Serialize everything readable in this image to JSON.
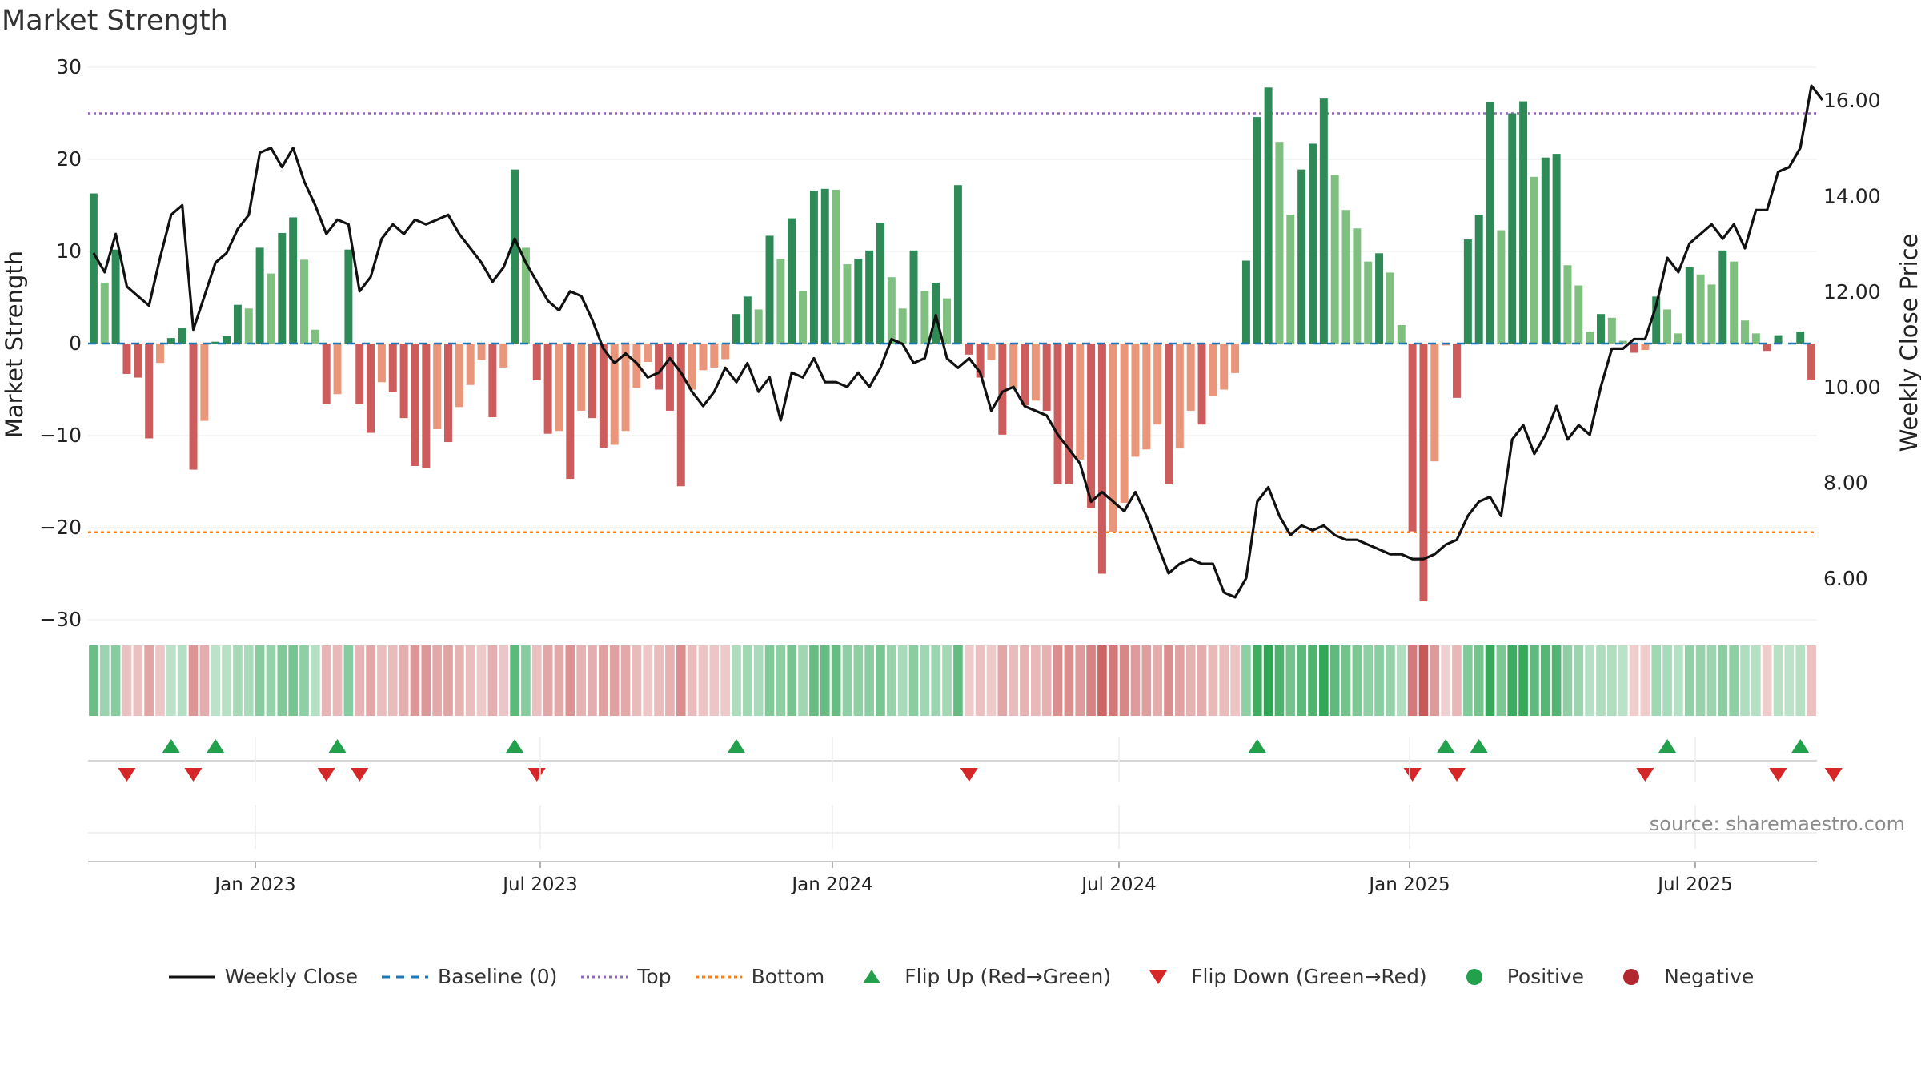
{
  "chart_data": {
    "type": "bar",
    "title": "Market Strength",
    "ylabel": "Market Strength",
    "y2label": "Weekly Close Price",
    "ylim": [
      -30,
      30
    ],
    "y2lim": [
      4.8,
      16.8
    ],
    "yticks": [
      "30",
      "20",
      "10",
      "0",
      "−10",
      "−20",
      "−30"
    ],
    "y2ticks": [
      "16.00",
      "14.00",
      "12.00",
      "10.00",
      "8.00",
      "6.00"
    ],
    "xticks": [
      "Jan 2023",
      "Jul 2023",
      "Jan 2024",
      "Jul 2024",
      "Jan 2025",
      "Jul 2025"
    ],
    "top_line": 25,
    "bottom_line": -20.5,
    "source": "source: sharemaestro.com",
    "colors": {
      "pos_dark": "#2e8b57",
      "pos_light": "#7fbf7f",
      "neg_dark": "#cd5c5c",
      "neg_light": "#e9967a",
      "close": "#111111",
      "baseline": "#1f77b4",
      "top": "#9467bd",
      "bottom": "#ff7f0e",
      "flip_up": "#22a04b",
      "flip_down": "#d62728"
    },
    "strength": [
      16.3,
      6.6,
      10.2,
      -3.3,
      -3.7,
      -10.3,
      -2.1,
      0.6,
      1.7,
      -13.7,
      -8.4,
      0.2,
      0.8,
      4.2,
      3.8,
      10.4,
      7.6,
      12.0,
      13.7,
      9.1,
      1.5,
      -6.6,
      -5.5,
      10.2,
      -6.6,
      -9.7,
      -4.2,
      -5.3,
      -8.1,
      -13.3,
      -13.5,
      -9.3,
      -10.7,
      -6.9,
      -4.5,
      -1.8,
      -8.0,
      -2.6,
      18.9,
      10.4,
      -4.0,
      -9.8,
      -9.5,
      -14.7,
      -7.3,
      -8.1,
      -11.3,
      -11.0,
      -9.5,
      -4.8,
      -2.0,
      -5.0,
      -7.3,
      -15.5,
      -5.0,
      -2.9,
      -2.6,
      -1.7,
      3.2,
      5.1,
      3.7,
      11.7,
      9.2,
      13.6,
      5.7,
      16.6,
      16.8,
      16.7,
      8.6,
      9.2,
      10.1,
      13.1,
      7.2,
      3.8,
      10.1,
      5.7,
      6.6,
      4.9,
      17.2,
      -1.2,
      -3.7,
      -1.8,
      -9.9,
      -4.8,
      -6.7,
      -6.2,
      -7.3,
      -15.3,
      -15.3,
      -12.6,
      -17.9,
      -25.0,
      -20.5,
      -17.3,
      -12.3,
      -11.5,
      -8.8,
      -15.3,
      -11.4,
      -7.3,
      -8.8,
      -5.7,
      -5.0,
      -3.2,
      9.0,
      24.6,
      27.8,
      21.9,
      14.0,
      18.9,
      21.7,
      26.6,
      18.3,
      14.5,
      12.5,
      8.9,
      9.8,
      7.7,
      2.0,
      -20.4,
      -28.0,
      -12.8,
      -0.2,
      -5.9,
      11.3,
      14.0,
      26.2,
      12.3,
      25.0,
      26.3,
      18.1,
      20.2,
      20.6,
      8.5,
      6.3,
      1.3,
      3.2,
      2.8,
      0.3,
      -1.0,
      -0.7,
      5.1,
      3.7,
      1.1,
      8.3,
      7.5,
      6.4,
      10.1,
      8.9,
      2.5,
      1.1,
      -0.8,
      0.9,
      0.0,
      1.3,
      -4.0
    ],
    "close": [
      12.8,
      12.4,
      13.2,
      12.1,
      11.9,
      11.7,
      12.7,
      13.6,
      13.8,
      11.2,
      11.9,
      12.6,
      12.8,
      13.3,
      13.6,
      14.9,
      15.0,
      14.6,
      15.0,
      14.3,
      13.8,
      13.2,
      13.5,
      13.4,
      12.0,
      12.3,
      13.1,
      13.4,
      13.2,
      13.5,
      13.4,
      13.5,
      13.6,
      13.2,
      12.9,
      12.6,
      12.2,
      12.5,
      13.1,
      12.6,
      12.2,
      11.8,
      11.6,
      12.0,
      11.9,
      11.4,
      10.8,
      10.5,
      10.7,
      10.5,
      10.2,
      10.3,
      10.6,
      10.3,
      9.9,
      9.6,
      9.9,
      10.4,
      10.1,
      10.5,
      9.9,
      10.2,
      9.3,
      10.3,
      10.2,
      10.6,
      10.1,
      10.1,
      10.0,
      10.3,
      10.0,
      10.4,
      11.0,
      10.9,
      10.5,
      10.6,
      11.5,
      10.6,
      10.4,
      10.6,
      10.3,
      9.5,
      9.9,
      10.0,
      9.6,
      9.5,
      9.4,
      9.0,
      8.7,
      8.4,
      7.6,
      7.8,
      7.6,
      7.4,
      7.8,
      7.3,
      6.7,
      6.1,
      6.3,
      6.4,
      6.3,
      6.3,
      5.7,
      5.6,
      6.0,
      7.6,
      7.9,
      7.3,
      6.9,
      7.1,
      7.0,
      7.1,
      6.9,
      6.8,
      6.8,
      6.7,
      6.6,
      6.5,
      6.5,
      6.4,
      6.4,
      6.5,
      6.7,
      6.8,
      7.3,
      7.6,
      7.7,
      7.3,
      8.9,
      9.2,
      8.6,
      9.0,
      9.6,
      8.9,
      9.2,
      9.0,
      10.0,
      10.8,
      10.8,
      11.0,
      11.0,
      11.7,
      12.7,
      12.4,
      13.0,
      13.2,
      13.4,
      13.1,
      13.4,
      12.9,
      13.7,
      13.7,
      14.5,
      14.6,
      15.0,
      16.3,
      16.0
    ],
    "flip_up_idx": [
      7,
      11,
      22,
      38,
      58,
      105,
      122,
      125,
      142,
      154
    ],
    "flip_down_idx": [
      3,
      9,
      21,
      24,
      40,
      79,
      119,
      123,
      140,
      152,
      157
    ],
    "strip": {
      "x_pattern": "one cell per weekly bar, tinted by strength"
    },
    "legend": [
      {
        "label": "Weekly Close",
        "kind": "line",
        "color": "#111111",
        "dash": ""
      },
      {
        "label": "Baseline (0)",
        "kind": "line",
        "color": "#1f77b4",
        "dash": "10,8"
      },
      {
        "label": "Top",
        "kind": "line",
        "color": "#9467bd",
        "dash": "3,4"
      },
      {
        "label": "Bottom",
        "kind": "line",
        "color": "#ff7f0e",
        "dash": "4,4"
      },
      {
        "label": "Flip Up (Red→Green)",
        "kind": "tri-up",
        "color": "#22a04b"
      },
      {
        "label": "Flip Down (Green→Red)",
        "kind": "tri-down",
        "color": "#d62728"
      },
      {
        "label": "Positive",
        "kind": "dot",
        "color": "#22a04b"
      },
      {
        "label": "Negative",
        "kind": "dot",
        "color": "#b2282e"
      }
    ]
  }
}
